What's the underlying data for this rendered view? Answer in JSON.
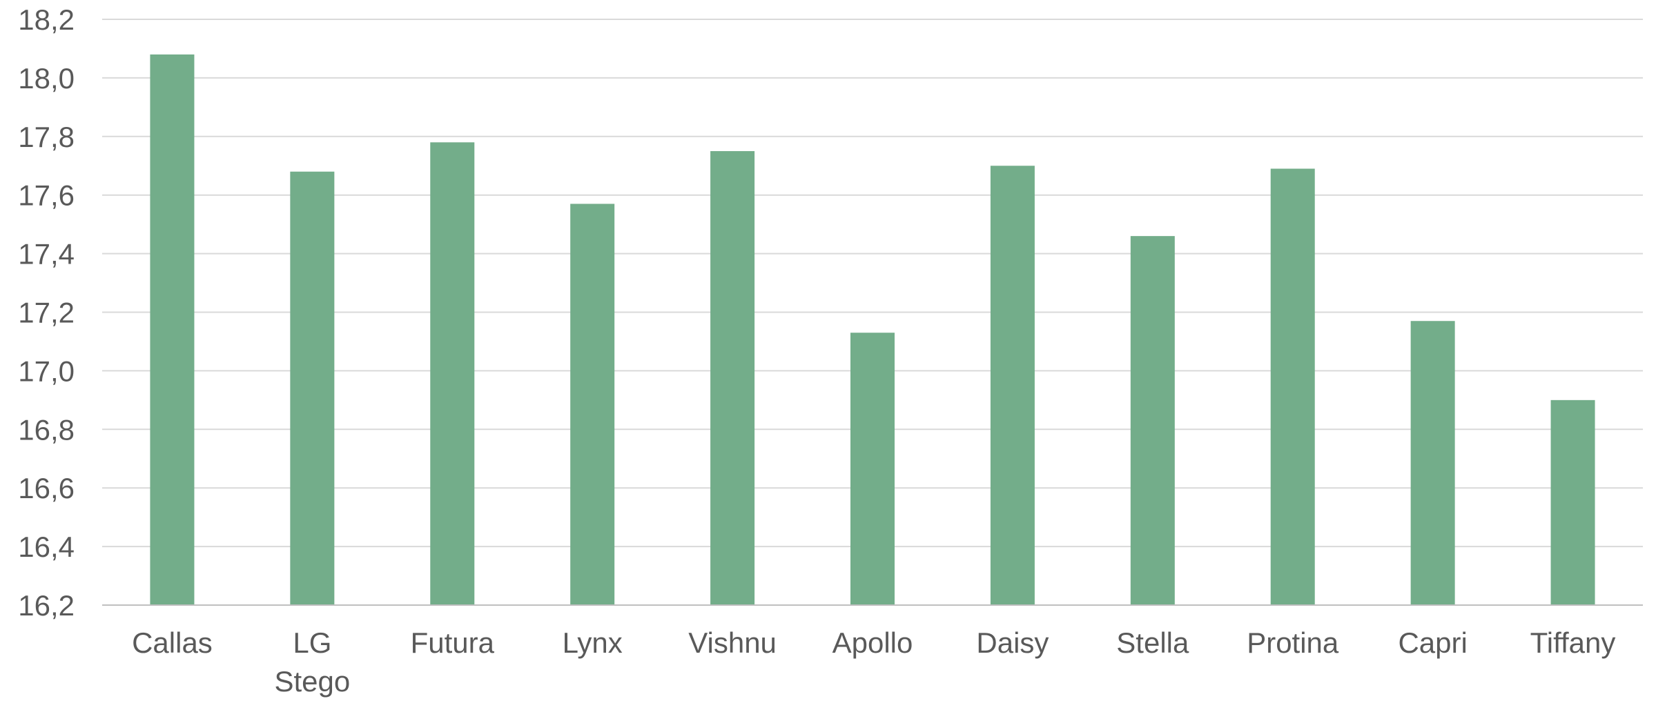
{
  "chart_data": {
    "type": "bar",
    "categories": [
      "Callas",
      "LG Stego",
      "Futura",
      "Lynx",
      "Vishnu",
      "Apollo",
      "Daisy",
      "Stella",
      "Protina",
      "Capri",
      "Tiffany"
    ],
    "category_lines": [
      [
        "Callas"
      ],
      [
        "LG",
        "Stego"
      ],
      [
        "Futura"
      ],
      [
        "Lynx"
      ],
      [
        "Vishnu"
      ],
      [
        "Apollo"
      ],
      [
        "Daisy"
      ],
      [
        "Stella"
      ],
      [
        "Protina"
      ],
      [
        "Capri"
      ],
      [
        "Tiffany"
      ]
    ],
    "values": [
      18.08,
      17.68,
      17.78,
      17.57,
      17.75,
      17.13,
      17.7,
      17.46,
      17.69,
      17.17,
      16.9
    ],
    "ylim": [
      16.2,
      18.2
    ],
    "yticks": [
      16.2,
      16.4,
      16.6,
      16.8,
      17.0,
      17.2,
      17.4,
      17.6,
      17.8,
      18.0,
      18.2
    ],
    "ytick_labels": [
      "16,2",
      "16,4",
      "16,6",
      "16,8",
      "17,0",
      "17,2",
      "17,4",
      "17,6",
      "17,8",
      "18,0",
      "18,2"
    ],
    "title": "",
    "xlabel": "",
    "ylabel": "",
    "grid": true,
    "legend": "none",
    "bar_color": "#73ad8a"
  }
}
